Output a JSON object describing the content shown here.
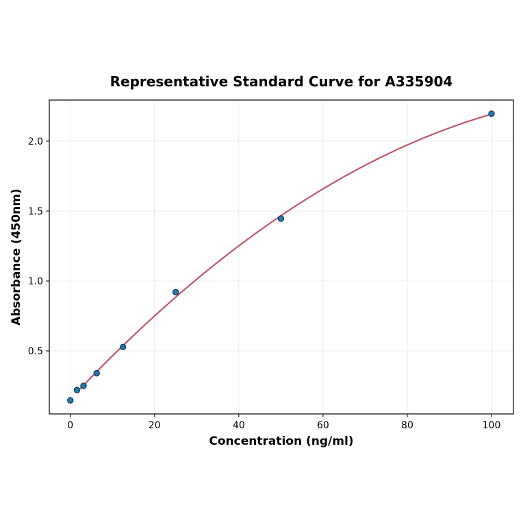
{
  "chart_data": {
    "type": "scatter",
    "title": "Representative Standard Curve for A335904",
    "xlabel": "Concentration (ng/ml)",
    "ylabel": "Absorbance (450nm)",
    "xlim": [
      -5,
      105.2
    ],
    "ylim": [
      0.049,
      2.294
    ],
    "x_ticks": [
      0,
      20,
      40,
      60,
      80,
      100
    ],
    "x_tick_labels": [
      "0",
      "20",
      "40",
      "60",
      "80",
      "100"
    ],
    "y_ticks": [
      0.5,
      1.0,
      1.5,
      2.0
    ],
    "y_tick_labels": [
      "0.5",
      "1.0",
      "1.5",
      "2.0"
    ],
    "grid": true,
    "series": [
      {
        "x": [
          0,
          1.5625,
          3.125,
          6.25,
          12.5,
          25,
          50,
          100
        ],
        "y": [
          0.146,
          0.22,
          0.25,
          0.34,
          0.528,
          0.92,
          1.446,
          2.196
        ],
        "marker_color": "#1f77b4",
        "fit_line_color": "#c0566a",
        "fit_range": [
          1.5625,
          100
        ]
      }
    ]
  }
}
